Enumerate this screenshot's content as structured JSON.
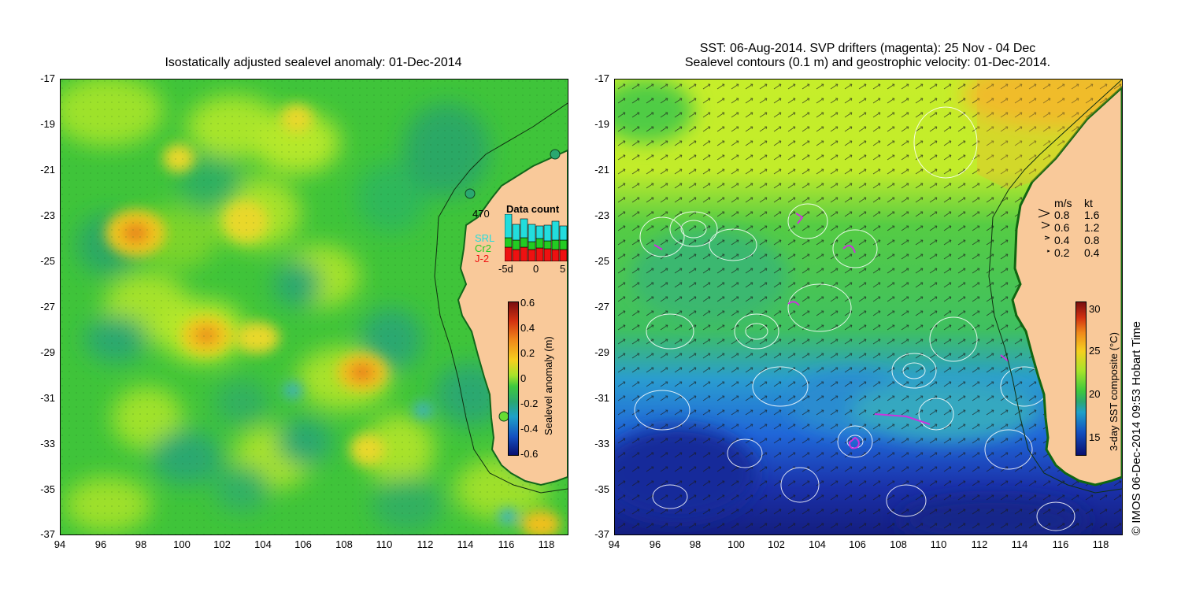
{
  "left_panel": {
    "title": "Isostatically adjusted sealevel anomaly: 01-Dec-2014",
    "colorbar": {
      "label": "Sealevel anomaly (m)",
      "ticks": [
        "0.6",
        "0.4",
        "0.2",
        "0",
        "-0.2",
        "-0.4",
        "-0.6"
      ]
    },
    "data_count": {
      "title": "Data count",
      "max_label": "470",
      "legend": [
        {
          "name": "SRL",
          "color": "#22dddd"
        },
        {
          "name": "Cr2",
          "color": "#22cc22"
        },
        {
          "name": "J-2",
          "color": "#ee1111"
        }
      ],
      "xticks": [
        "-5d",
        "0",
        "5"
      ]
    }
  },
  "right_panel": {
    "title_line1": "SST: 06-Aug-2014. SVP drifters (magenta): 25 Nov - 04 Dec",
    "title_line2": "Sealevel contours (0.1 m) and geostrophic velocity: 01-Dec-2014.",
    "colorbar": {
      "label": "3-day SST composite (°C)",
      "ticks": [
        "30",
        "25",
        "20",
        "15"
      ]
    },
    "velocity_legend": {
      "header_ms": "m/s",
      "header_kt": "kt",
      "rows": [
        {
          "ms": "0.8",
          "kt": "1.6"
        },
        {
          "ms": "0.6",
          "kt": "1.2"
        },
        {
          "ms": "0.4",
          "kt": "0.8"
        },
        {
          "ms": "0.2",
          "kt": "0.4"
        }
      ]
    }
  },
  "axes": {
    "lat_ticks": [
      "-17",
      "-19",
      "-21",
      "-23",
      "-25",
      "-27",
      "-29",
      "-31",
      "-33",
      "-35",
      "-37"
    ],
    "lon_ticks": [
      "94",
      "96",
      "98",
      "100",
      "102",
      "104",
      "106",
      "108",
      "110",
      "112",
      "114",
      "116",
      "118"
    ],
    "lat_range": [
      -37,
      -17
    ],
    "lon_range": [
      94,
      119
    ]
  },
  "credit": "© IMOS 06-Dec-2014 09:53 Hobart Time",
  "colors": {
    "land": "#f9c99a",
    "sla_base": "#3ec83e",
    "sst_warm": "#c8ee2a",
    "sst_cool": "#1a2aa0"
  }
}
